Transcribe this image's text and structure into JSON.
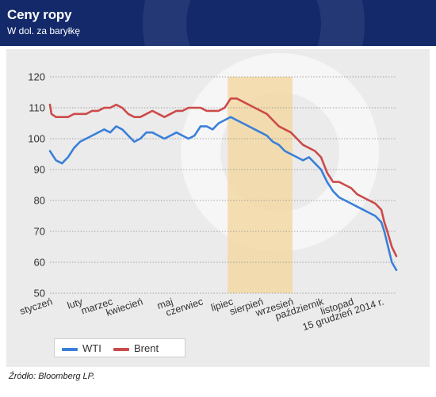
{
  "header": {
    "title": "Ceny ropy",
    "subtitle": "W dol. za baryłkę"
  },
  "source": "Źródło: Bloomberg LP.",
  "colors": {
    "header_bg": "#13296a",
    "wti": "#3a7fd9",
    "brent": "#cc4a4a",
    "highlight": "#f3d9a4"
  },
  "chart_data": {
    "type": "line",
    "title": "Ceny ropy",
    "subtitle": "W dol. za baryłkę",
    "ylim": [
      50,
      120
    ],
    "yticks": [
      50,
      60,
      70,
      80,
      90,
      100,
      110,
      120
    ],
    "grid": true,
    "legend_position": "bottom-left",
    "categories": [
      "styczeń",
      "luty",
      "marzec",
      "kwiecień",
      "maj",
      "czerwiec",
      "lipiec",
      "sierpień",
      "wrzesień",
      "październik",
      "listopad",
      "15 grudzień 2014 r."
    ],
    "highlight": {
      "from_month": 5.9,
      "to_month": 8.05
    },
    "series": [
      {
        "name": "WTI",
        "color": "#3a7fd9",
        "x": [
          0.0,
          0.2,
          0.4,
          0.6,
          0.8,
          1.0,
          1.2,
          1.4,
          1.6,
          1.8,
          2.0,
          2.2,
          2.4,
          2.6,
          2.8,
          3.0,
          3.2,
          3.4,
          3.6,
          3.8,
          4.0,
          4.2,
          4.4,
          4.6,
          4.8,
          5.0,
          5.2,
          5.4,
          5.6,
          5.8,
          6.0,
          6.2,
          6.4,
          6.6,
          6.8,
          7.0,
          7.2,
          7.4,
          7.6,
          7.8,
          8.0,
          8.2,
          8.4,
          8.6,
          8.8,
          9.0,
          9.2,
          9.4,
          9.6,
          9.8,
          10.0,
          10.2,
          10.4,
          10.6,
          10.8,
          11.0,
          11.1,
          11.2,
          11.35,
          11.5
        ],
        "values": [
          96,
          93,
          92,
          94,
          97,
          99,
          100,
          101,
          102,
          103,
          102,
          104,
          103,
          101,
          99,
          100,
          102,
          102,
          101,
          100,
          101,
          102,
          101,
          100,
          101,
          104,
          104,
          103,
          105,
          106,
          107,
          106,
          105,
          104,
          103,
          102,
          101,
          99,
          98,
          96,
          95,
          94,
          93,
          94,
          92,
          90,
          86,
          83,
          81,
          80,
          79,
          78,
          77,
          76,
          75,
          73,
          70,
          66,
          60,
          57.5
        ]
      },
      {
        "name": "Brent",
        "color": "#cc4a4a",
        "x": [
          0.0,
          0.05,
          0.2,
          0.4,
          0.6,
          0.8,
          1.0,
          1.2,
          1.4,
          1.6,
          1.8,
          2.0,
          2.2,
          2.4,
          2.6,
          2.8,
          3.0,
          3.2,
          3.4,
          3.6,
          3.8,
          4.0,
          4.2,
          4.4,
          4.6,
          4.8,
          5.0,
          5.2,
          5.4,
          5.6,
          5.8,
          6.0,
          6.2,
          6.4,
          6.6,
          6.8,
          7.0,
          7.2,
          7.4,
          7.6,
          7.8,
          8.0,
          8.2,
          8.4,
          8.6,
          8.8,
          9.0,
          9.2,
          9.4,
          9.6,
          9.8,
          10.0,
          10.2,
          10.4,
          10.6,
          10.8,
          11.0,
          11.1,
          11.2,
          11.35,
          11.5
        ],
        "values": [
          111,
          108,
          107,
          107,
          107,
          108,
          108,
          108,
          109,
          109,
          110,
          110,
          111,
          110,
          108,
          107,
          107,
          108,
          109,
          108,
          107,
          108,
          109,
          109,
          110,
          110,
          110,
          109,
          109,
          109,
          110,
          113,
          113,
          112,
          111,
          110,
          109,
          108,
          106,
          104,
          103,
          102,
          100,
          98,
          97,
          96,
          94,
          89,
          86,
          86,
          85,
          84,
          82,
          81,
          80,
          79,
          77,
          73,
          70,
          65,
          62
        ]
      }
    ]
  }
}
